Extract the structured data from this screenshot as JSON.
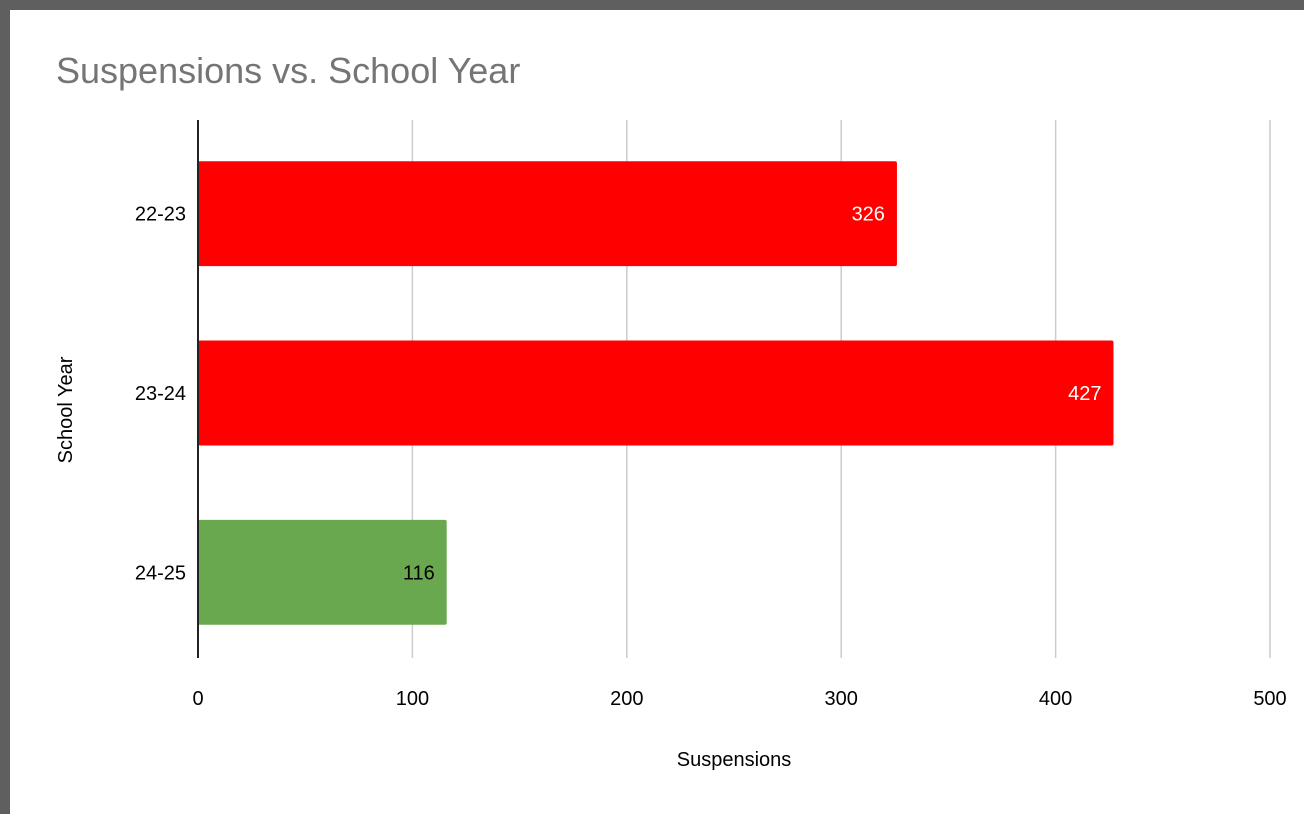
{
  "chart_data": {
    "type": "bar",
    "orientation": "horizontal",
    "title": "Suspensions vs. School Year",
    "xlabel": "Suspensions",
    "ylabel": "School Year",
    "categories": [
      "22-23",
      "23-24",
      "24-25"
    ],
    "values": [
      326,
      427,
      116
    ],
    "bar_colors": [
      "#ff0000",
      "#ff0000",
      "#6aa84f"
    ],
    "data_label_colors": [
      "#ffffff",
      "#ffffff",
      "#000000"
    ],
    "xlim": [
      0,
      500
    ],
    "xticks": [
      0,
      100,
      200,
      300,
      400,
      500
    ],
    "grid": true,
    "legend": "none"
  },
  "colors": {
    "frame_border": "#5f5f5f",
    "title": "#757575",
    "gridline": "#cccccc"
  }
}
